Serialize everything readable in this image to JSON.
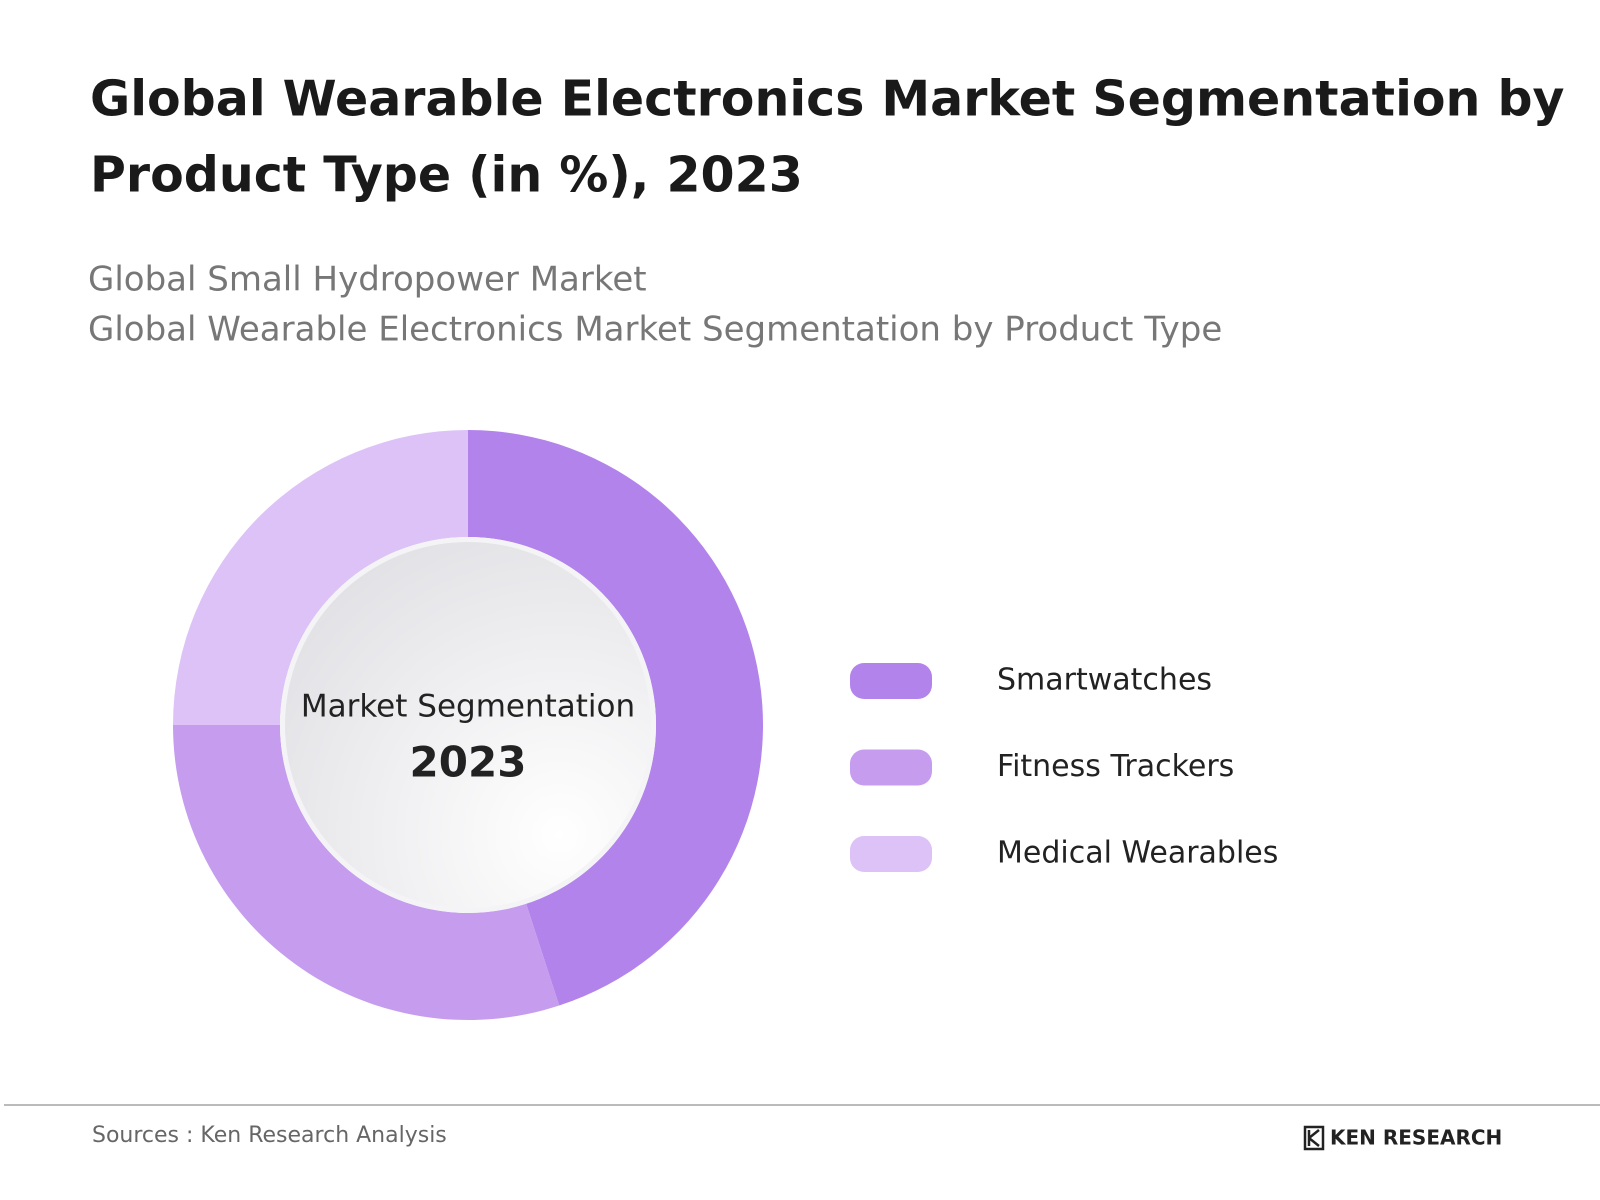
{
  "chart_data": {
    "type": "pie",
    "title_lines": [
      "Global Wearable Electronics Market Segmentation by",
      "Product Type (in %), 2023"
    ],
    "subtitle_lines": [
      "Global Small Hydropower Market",
      "Global Wearable Electronics Market Segmentation by Product Type"
    ],
    "center_label": "Market Segmentation",
    "center_year": "2023",
    "categories": [
      "Smartwatches",
      "Fitness Trackers",
      "Medical Wearables"
    ],
    "values": [
      45,
      30,
      25
    ],
    "colors": [
      "#b383ec",
      "#c69cee",
      "#dcc2f7"
    ]
  },
  "footer": {
    "source": "Sources : Ken Research Analysis",
    "brand": "KEN RESEARCH"
  }
}
